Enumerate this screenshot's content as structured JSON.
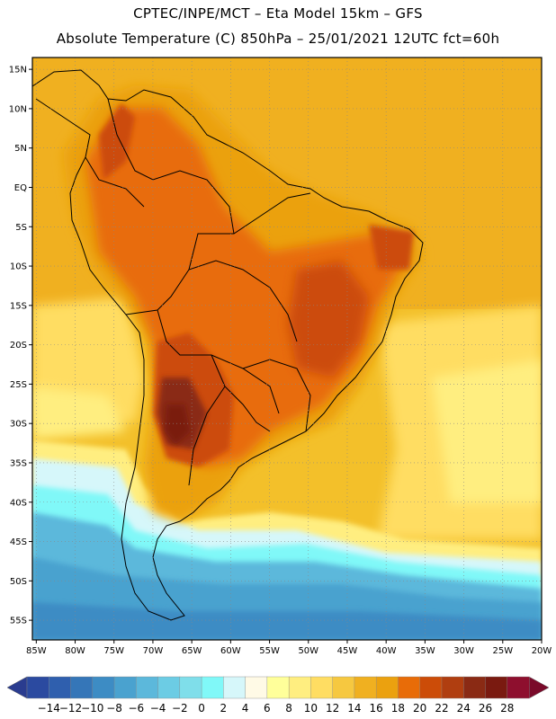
{
  "header": {
    "line1": "CPTEC/INPE/MCT –  Eta Model 15km – GFS",
    "line2": "Absolute Temperature (C) 850hPa – 25/01/2021 12UTC fct=60h"
  },
  "map": {
    "lat_labels": [
      "15N",
      "10N",
      "5N",
      "EQ",
      "5S",
      "10S",
      "15S",
      "20S",
      "25S",
      "30S",
      "35S",
      "40S",
      "45S",
      "50S",
      "55S"
    ],
    "lat_values": [
      15,
      10,
      5,
      0,
      -5,
      -10,
      -15,
      -20,
      -25,
      -30,
      -35,
      -40,
      -45,
      -50,
      -55
    ],
    "lon_labels": [
      "85W",
      "80W",
      "75W",
      "70W",
      "65W",
      "60W",
      "55W",
      "50W",
      "45W",
      "40W",
      "35W",
      "30W",
      "25W",
      "20W"
    ],
    "lon_values": [
      -85,
      -80,
      -75,
      -70,
      -65,
      -60,
      -55,
      -50,
      -45,
      -40,
      -35,
      -30,
      -25,
      -20
    ],
    "extent": {
      "lon_min": -85.5,
      "lon_max": -20,
      "lat_min": -57.5,
      "lat_max": 16.5
    },
    "grid": "dotted"
  },
  "colorbar": {
    "labels": [
      "-14",
      "-12",
      "-10",
      "-8",
      "-6",
      "-4",
      "-2",
      "0",
      "2",
      "4",
      "6",
      "8",
      "10",
      "12",
      "14",
      "16",
      "18",
      "20",
      "22",
      "24",
      "26",
      "28"
    ],
    "colors": [
      "#2b4aa0",
      "#2f5fae",
      "#3576b8",
      "#3d8cc4",
      "#4aa2cf",
      "#5cb8db",
      "#6ccce4",
      "#7fdeea",
      "#80f8f8",
      "#d6f7fa",
      "#fffae6",
      "#ffff9a",
      "#ffee80",
      "#ffdd62",
      "#f6c840",
      "#f0b020",
      "#eba10f",
      "#e86c08",
      "#cc4c08",
      "#b03e10",
      "#8a2a14",
      "#7a1a10",
      "#8e0f2e"
    ],
    "triangle_left": "#2a3c8f",
    "triangle_right": "#7a0a2a"
  }
}
